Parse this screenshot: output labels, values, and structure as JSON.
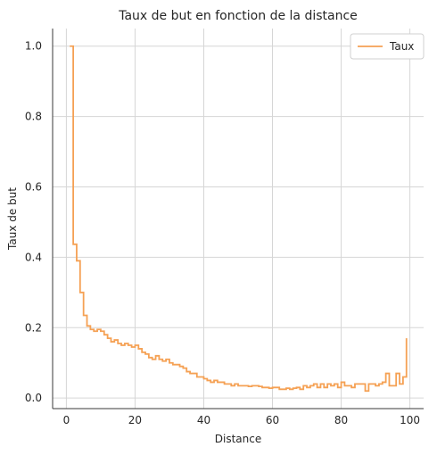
{
  "chart_data": {
    "type": "line",
    "step": true,
    "title": "Taux de but en fonction de la distance",
    "xlabel": "Distance",
    "ylabel": "Taux de but",
    "xlim": [
      -4,
      104
    ],
    "ylim": [
      -0.03,
      1.05
    ],
    "xticks": [
      0,
      20,
      40,
      60,
      80,
      100
    ],
    "yticks": [
      0.0,
      0.2,
      0.4,
      0.6,
      0.8,
      1.0
    ],
    "xtick_labels": [
      "0",
      "20",
      "40",
      "60",
      "80",
      "100"
    ],
    "ytick_labels": [
      "0.0",
      "0.2",
      "0.4",
      "0.6",
      "0.8",
      "1.0"
    ],
    "grid": true,
    "legend_position": "top-right",
    "series": [
      {
        "name": "Taux",
        "color": "#f5a154",
        "x": [
          1,
          2,
          3,
          4,
          5,
          6,
          7,
          8,
          9,
          10,
          11,
          12,
          13,
          14,
          15,
          16,
          17,
          18,
          19,
          20,
          21,
          22,
          23,
          24,
          25,
          26,
          27,
          28,
          29,
          30,
          31,
          32,
          33,
          34,
          35,
          36,
          37,
          38,
          39,
          40,
          41,
          42,
          43,
          44,
          45,
          46,
          47,
          48,
          49,
          50,
          51,
          52,
          53,
          54,
          55,
          56,
          57,
          58,
          59,
          60,
          61,
          62,
          63,
          64,
          65,
          66,
          67,
          68,
          69,
          70,
          71,
          72,
          73,
          74,
          75,
          76,
          77,
          78,
          79,
          80,
          81,
          82,
          83,
          84,
          85,
          86,
          87,
          88,
          89,
          90,
          91,
          92,
          93,
          94,
          95,
          96,
          97,
          98,
          99
        ],
        "y": [
          1.0,
          0.437,
          0.39,
          0.3,
          0.235,
          0.205,
          0.195,
          0.19,
          0.195,
          0.19,
          0.18,
          0.17,
          0.16,
          0.165,
          0.155,
          0.15,
          0.155,
          0.15,
          0.145,
          0.15,
          0.14,
          0.13,
          0.125,
          0.115,
          0.11,
          0.12,
          0.11,
          0.105,
          0.11,
          0.1,
          0.095,
          0.095,
          0.09,
          0.085,
          0.075,
          0.07,
          0.07,
          0.06,
          0.06,
          0.055,
          0.05,
          0.045,
          0.05,
          0.045,
          0.045,
          0.04,
          0.04,
          0.035,
          0.04,
          0.035,
          0.035,
          0.035,
          0.033,
          0.035,
          0.035,
          0.033,
          0.03,
          0.03,
          0.028,
          0.03,
          0.03,
          0.025,
          0.025,
          0.028,
          0.025,
          0.028,
          0.03,
          0.025,
          0.035,
          0.03,
          0.035,
          0.04,
          0.03,
          0.04,
          0.03,
          0.04,
          0.035,
          0.04,
          0.03,
          0.045,
          0.035,
          0.035,
          0.03,
          0.04,
          0.04,
          0.04,
          0.02,
          0.04,
          0.04,
          0.035,
          0.04,
          0.045,
          0.07,
          0.035,
          0.035,
          0.07,
          0.04,
          0.06,
          0.17
        ]
      }
    ]
  }
}
